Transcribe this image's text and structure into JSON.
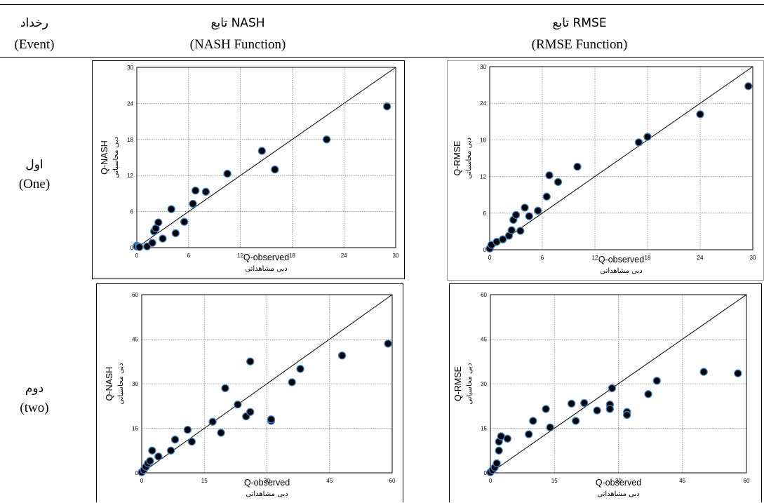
{
  "header": {
    "event_fa": "رخداد",
    "event_en": "(Event)",
    "nash_fa": "تابع  NASH",
    "nash_en": "(NASH Function)",
    "rmse_fa": "تابع RMSE",
    "rmse_en": "(RMSE Function)"
  },
  "rows": [
    {
      "label_fa": "اول",
      "label_en": "(One)"
    },
    {
      "label_fa": "دوم",
      "label_en": "(two)"
    }
  ],
  "chart_data": [
    {
      "type": "scatter",
      "xlabel": "Q-observed",
      "xlabel_sub": "دبی مشاهداتی",
      "ylabel": "Q-NASH",
      "ylabel_sub": "دبی محاسباتی",
      "xlim": [
        0,
        30
      ],
      "ylim": [
        0,
        30
      ],
      "xticks": [
        0,
        6,
        12,
        18,
        24,
        30
      ],
      "yticks": [
        0,
        6,
        12,
        18,
        24,
        30
      ],
      "grid": true,
      "reference_line": "1:1",
      "marker_color": "#000000",
      "marker_edge": "#3d7fc4",
      "points": [
        [
          0,
          0.3
        ],
        [
          0,
          0.2
        ],
        [
          0.2,
          0.2
        ],
        [
          0.3,
          0.1
        ],
        [
          1.2,
          0.2
        ],
        [
          1.8,
          0.8
        ],
        [
          2,
          2.7
        ],
        [
          2.2,
          3.2
        ],
        [
          2.5,
          4.2
        ],
        [
          3,
          1.5
        ],
        [
          4,
          6.4
        ],
        [
          4.5,
          2.4
        ],
        [
          5.5,
          4.3
        ],
        [
          6.5,
          7.3
        ],
        [
          6.8,
          9.5
        ],
        [
          8,
          9.3
        ],
        [
          10.5,
          12.3
        ],
        [
          14.5,
          16.1
        ],
        [
          16,
          13
        ],
        [
          22,
          18
        ],
        [
          29,
          23.5
        ]
      ]
    },
    {
      "type": "scatter",
      "xlabel": "Q-observed",
      "xlabel_sub": "دبی مشاهداتی",
      "ylabel": "Q-RMSE",
      "ylabel_sub": "دبی محاسباتی",
      "xlim": [
        0,
        30
      ],
      "ylim": [
        0,
        30
      ],
      "xticks": [
        0,
        6,
        12,
        18,
        24,
        30
      ],
      "yticks": [
        0,
        6,
        12,
        18,
        24,
        30
      ],
      "grid": true,
      "reference_line": "1:1",
      "marker_color": "#000000",
      "marker_edge": "#3d7fc4",
      "points": [
        [
          0,
          0.2
        ],
        [
          0.2,
          0.8
        ],
        [
          0.8,
          1.3
        ],
        [
          1.5,
          1.7
        ],
        [
          2.2,
          2.3
        ],
        [
          2.5,
          3.2
        ],
        [
          2.7,
          4.9
        ],
        [
          3,
          5.7
        ],
        [
          3.5,
          3.1
        ],
        [
          4,
          6.9
        ],
        [
          4.5,
          5.5
        ],
        [
          5.5,
          6.4
        ],
        [
          6.5,
          8.7
        ],
        [
          6.8,
          12.2
        ],
        [
          7.8,
          11.1
        ],
        [
          10,
          13.6
        ],
        [
          17,
          17.6
        ],
        [
          18,
          18.5
        ],
        [
          24,
          22.2
        ],
        [
          29.5,
          26.8
        ]
      ]
    },
    {
      "type": "scatter",
      "xlabel": "Q-observed",
      "xlabel_sub": "دبی مشاهداتی",
      "ylabel": "Q-NASH",
      "ylabel_sub": "دبی محاسباتی",
      "xlim": [
        0,
        60
      ],
      "ylim": [
        0,
        60
      ],
      "xticks": [
        0,
        15,
        30,
        45,
        60
      ],
      "yticks": [
        0,
        15,
        30,
        45,
        60
      ],
      "grid": true,
      "reference_line": "1:1",
      "marker_color": "#000000",
      "marker_edge": "#3d7fc4",
      "points": [
        [
          0,
          0.2
        ],
        [
          0.5,
          1
        ],
        [
          1,
          2
        ],
        [
          1.5,
          3.2
        ],
        [
          2,
          4
        ],
        [
          2.5,
          7.5
        ],
        [
          4,
          5.5
        ],
        [
          7,
          7.5
        ],
        [
          8,
          11.2
        ],
        [
          11,
          14.5
        ],
        [
          12,
          10.5
        ],
        [
          17,
          17.2
        ],
        [
          19,
          13.5
        ],
        [
          20,
          28.5
        ],
        [
          23,
          23
        ],
        [
          25,
          19
        ],
        [
          26,
          37.5
        ],
        [
          26,
          20.5
        ],
        [
          31,
          17.5
        ],
        [
          31,
          18
        ],
        [
          36,
          30.5
        ],
        [
          38,
          35
        ],
        [
          48,
          39.5
        ],
        [
          59,
          43.5
        ]
      ]
    },
    {
      "type": "scatter",
      "xlabel": "Q-observed",
      "xlabel_sub": "دبی مشاهداتی",
      "ylabel": "Q-RMSE",
      "ylabel_sub": "دبی محاسباتی",
      "xlim": [
        0,
        60
      ],
      "ylim": [
        0,
        60
      ],
      "xticks": [
        0,
        15,
        30,
        45,
        60
      ],
      "yticks": [
        0,
        15,
        30,
        45,
        60
      ],
      "grid": true,
      "reference_line": "1:1",
      "marker_color": "#000000",
      "marker_edge": "#3d7fc4",
      "points": [
        [
          0,
          0.2
        ],
        [
          0.5,
          1
        ],
        [
          1,
          1.8
        ],
        [
          1.5,
          3.2
        ],
        [
          2,
          7.5
        ],
        [
          2,
          10.5
        ],
        [
          2.5,
          12.3
        ],
        [
          4,
          11.5
        ],
        [
          9,
          13
        ],
        [
          10,
          17.5
        ],
        [
          13,
          21.5
        ],
        [
          14,
          15.3
        ],
        [
          19,
          23.3
        ],
        [
          20,
          17.5
        ],
        [
          22,
          23.5
        ],
        [
          25,
          21
        ],
        [
          28,
          23
        ],
        [
          28,
          21.5
        ],
        [
          28.5,
          28.5
        ],
        [
          32,
          20.5
        ],
        [
          32,
          19.5
        ],
        [
          37,
          26.5
        ],
        [
          39,
          31
        ],
        [
          50,
          34
        ],
        [
          58,
          33.5
        ]
      ]
    }
  ]
}
